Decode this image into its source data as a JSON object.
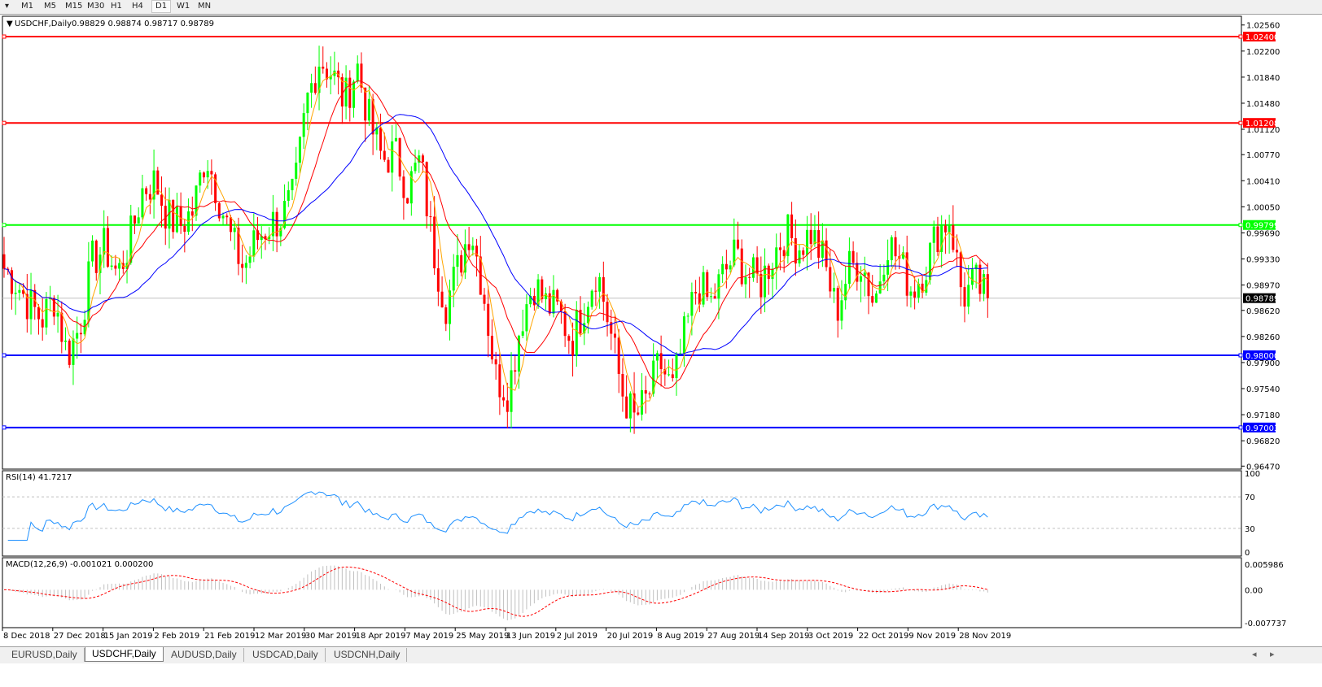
{
  "toolbar": {
    "timeframes": [
      "M1",
      "M5",
      "M15",
      "M30",
      "H1",
      "H4",
      "D1",
      "W1",
      "MN"
    ],
    "active": "D1"
  },
  "chart": {
    "symbol_label": "USDCHF,Daily",
    "ohlc_label": "0.98829 0.98874 0.98717 0.98789",
    "price_axis": [
      "1.02560",
      "1.02200",
      "1.01840",
      "1.01480",
      "1.01120",
      "1.00770",
      "1.00410",
      "1.00050",
      "0.99690",
      "0.99330",
      "0.98970",
      "0.98620",
      "0.98260",
      "0.97900",
      "0.97540",
      "0.97180",
      "0.96820",
      "0.96470"
    ],
    "horizontal_lines": [
      {
        "price": "1.02400",
        "color": "#ff0000"
      },
      {
        "price": "1.01208",
        "color": "#ff0000"
      },
      {
        "price": "0.99799",
        "color": "#00ff00"
      },
      {
        "price": "0.98000",
        "color": "#0000ff"
      },
      {
        "price": "0.97003",
        "color": "#0000ff"
      }
    ],
    "current_price": "0.98789",
    "colors": {
      "bull": "#00ff00",
      "bear": "#ff0000",
      "ma_fast": "#ffa500",
      "ma_mid": "#ff0000",
      "ma_slow": "#0000ff"
    }
  },
  "chart_data": {
    "type": "candlestick",
    "approx_closes": [
      0.992,
      0.99,
      0.987,
      0.985,
      0.988,
      0.98,
      0.984,
      0.993,
      0.995,
      0.991,
      0.996,
      1.003,
      1.004,
      0.999,
      0.998,
      1.0,
      1.008,
      1.002,
      0.996,
      0.992,
      0.996,
      0.998,
      0.999,
      1.002,
      1.015,
      1.021,
      1.019,
      1.015,
      1.02,
      1.012,
      1.007,
      1.008,
      1.003,
      1.007,
      0.995,
      0.987,
      0.992,
      0.998,
      0.989,
      0.977,
      0.975,
      0.985,
      0.99,
      0.987,
      0.986,
      0.982,
      0.987,
      0.992,
      0.984,
      0.975,
      0.971,
      0.974,
      0.979,
      0.975,
      0.983,
      0.99,
      0.987,
      0.991,
      0.994,
      0.991,
      0.99,
      0.994,
      0.997,
      0.995,
      0.997,
      0.993,
      0.986,
      0.992,
      0.993,
      0.987,
      0.996,
      0.993,
      0.989,
      0.992,
      0.997,
      0.999,
      0.988,
      0.99,
      0.98789
    ],
    "ylim": [
      0.9647,
      1.0256
    ],
    "x_labels": [
      "8 Dec 2018",
      "27 Dec 2018",
      "15 Jan 2019",
      "2 Feb 2019",
      "21 Feb 2019",
      "12 Mar 2019",
      "30 Mar 2019",
      "18 Apr 2019",
      "7 May 2019",
      "25 May 2019",
      "13 Jun 2019",
      "2 Jul 2019",
      "20 Jul 2019",
      "8 Aug 2019",
      "27 Aug 2019",
      "14 Sep 2019",
      "3 Oct 2019",
      "22 Oct 2019",
      "9 Nov 2019",
      "28 Nov 2019"
    ]
  },
  "rsi": {
    "label": "RSI(14) 41.7217",
    "axis": [
      "100",
      "70",
      "30",
      "0"
    ],
    "levels": [
      70,
      30
    ],
    "color": "#1e90ff"
  },
  "macd": {
    "label": "MACD(12,26,9) -0.001021 0.000200",
    "axis": [
      "0.005986",
      "0.00",
      "-0.007737"
    ],
    "signal_color": "#ff0000",
    "hist_color": "#c0c0c0"
  },
  "tabs": [
    {
      "label": "EURUSD,Daily"
    },
    {
      "label": "USDCHF,Daily",
      "active": true
    },
    {
      "label": "AUDUSD,Daily"
    },
    {
      "label": "USDCAD,Daily"
    },
    {
      "label": "USDCNH,Daily"
    }
  ]
}
